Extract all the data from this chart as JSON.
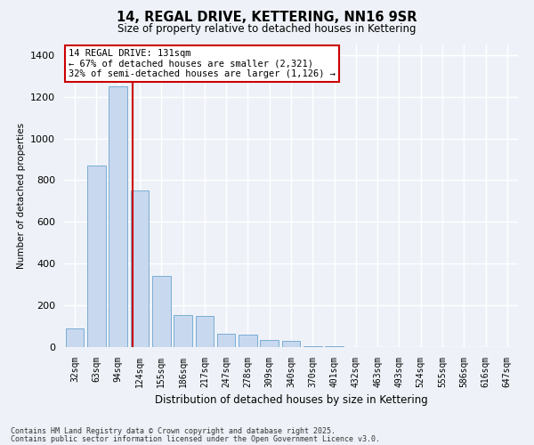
{
  "title1": "14, REGAL DRIVE, KETTERING, NN16 9SR",
  "title2": "Size of property relative to detached houses in Kettering",
  "xlabel": "Distribution of detached houses by size in Kettering",
  "ylabel": "Number of detached properties",
  "categories": [
    "32sqm",
    "63sqm",
    "94sqm",
    "124sqm",
    "155sqm",
    "186sqm",
    "217sqm",
    "247sqm",
    "278sqm",
    "309sqm",
    "340sqm",
    "370sqm",
    "401sqm",
    "432sqm",
    "463sqm",
    "493sqm",
    "524sqm",
    "555sqm",
    "586sqm",
    "616sqm",
    "647sqm"
  ],
  "values": [
    90,
    870,
    1250,
    750,
    340,
    155,
    150,
    65,
    60,
    35,
    30,
    5,
    5,
    0,
    0,
    0,
    0,
    0,
    0,
    0,
    0
  ],
  "bar_color": "#c8d8ee",
  "bar_edge_color": "#7aadd4",
  "vline_x": 3,
  "vline_color": "#cc0000",
  "annotation_text": "14 REGAL DRIVE: 131sqm\n← 67% of detached houses are smaller (2,321)\n32% of semi-detached houses are larger (1,126) →",
  "annotation_box_color": "#ffffff",
  "annotation_box_edge": "#cc0000",
  "footnote1": "Contains HM Land Registry data © Crown copyright and database right 2025.",
  "footnote2": "Contains public sector information licensed under the Open Government Licence v3.0.",
  "ylim": [
    0,
    1450
  ],
  "yticks": [
    0,
    200,
    400,
    600,
    800,
    1000,
    1200,
    1400
  ],
  "background_color": "#eef2f8"
}
